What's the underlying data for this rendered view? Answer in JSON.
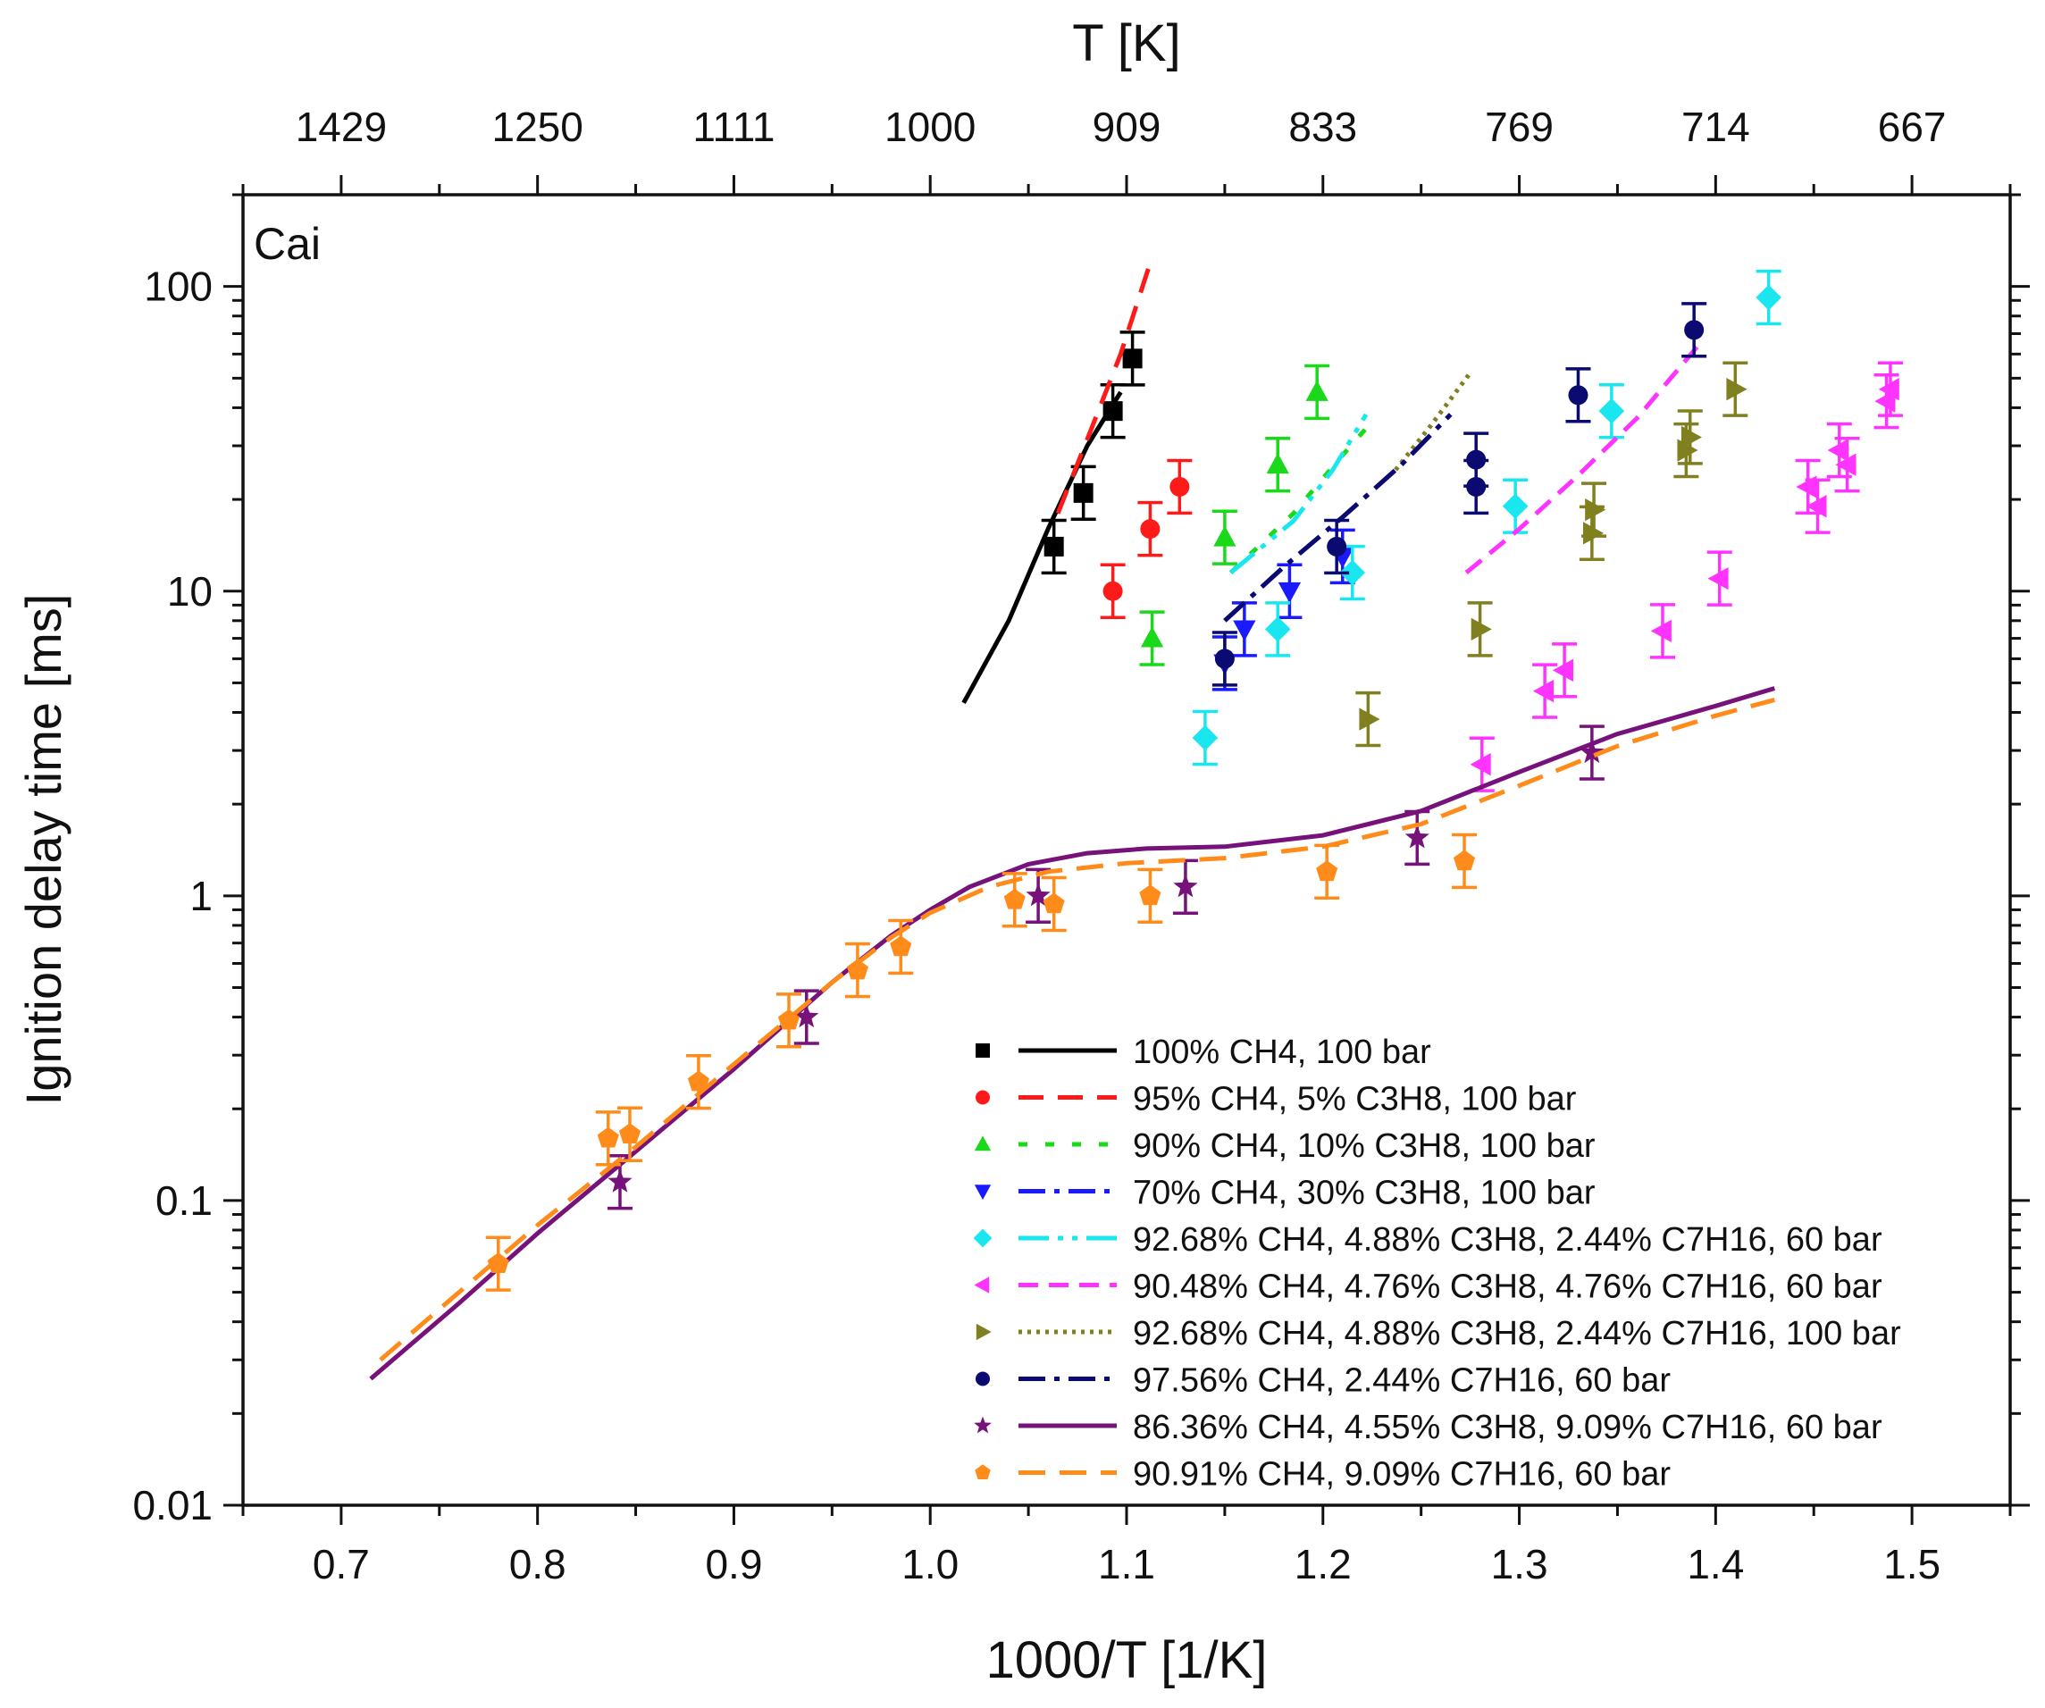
{
  "chart_data": {
    "type": "scatter",
    "title": "",
    "corner_label": "Cai",
    "xlabel": "1000/T [1/K]",
    "ylabel": "Ignition delay time [ms]",
    "top_xlabel": "T [K]",
    "xlim": [
      0.65,
      1.55
    ],
    "ylim": [
      0.01,
      200
    ],
    "yscale": "log",
    "x_ticks": [
      0.7,
      0.8,
      0.9,
      1.0,
      1.1,
      1.2,
      1.3,
      1.4,
      1.5
    ],
    "x_tick_labels": [
      "0.7",
      "0.8",
      "0.9",
      "1.0",
      "1.1",
      "1.2",
      "1.3",
      "1.4",
      "1.5"
    ],
    "y_ticks": [
      0.01,
      0.1,
      1,
      10,
      100
    ],
    "y_tick_labels": [
      "0.01",
      "0.1",
      "1",
      "10",
      "100"
    ],
    "top_ticks": [
      0.7,
      0.8,
      0.9,
      1.0,
      1.1,
      1.2,
      1.3,
      1.4,
      1.5
    ],
    "top_tick_labels": [
      "1429",
      "1250",
      "1111",
      "1000",
      "909",
      "833",
      "769",
      "714",
      "667"
    ],
    "legend_position": "bottom-right",
    "series": [
      {
        "name": "100% CH4, 100 bar",
        "color": "#000000",
        "marker": "square",
        "dash": "",
        "points": [
          [
            1.063,
            14
          ],
          [
            1.078,
            21
          ],
          [
            1.093,
            39
          ],
          [
            1.103,
            58
          ]
        ],
        "model": [
          [
            1.017,
            4.3
          ],
          [
            1.04,
            8
          ],
          [
            1.06,
            16
          ],
          [
            1.08,
            30
          ],
          [
            1.097,
            45
          ]
        ]
      },
      {
        "name": "95% CH4, 5% C3H8, 100 bar",
        "color": "#ff1a1a",
        "marker": "circle",
        "dash": "28,16",
        "points": [
          [
            1.093,
            10
          ],
          [
            1.112,
            16
          ],
          [
            1.127,
            22
          ]
        ],
        "model": [
          [
            1.065,
            18
          ],
          [
            1.082,
            34
          ],
          [
            1.097,
            60
          ],
          [
            1.113,
            125
          ]
        ]
      },
      {
        "name": "90% CH4, 10% C3H8, 100 bar",
        "color": "#1ad81a",
        "marker": "triangle-up",
        "dash": "10,20",
        "points": [
          [
            1.113,
            7
          ],
          [
            1.15,
            15
          ],
          [
            1.177,
            26
          ],
          [
            1.197,
            45
          ]
        ],
        "model": [
          [
            1.153,
            11.5
          ],
          [
            1.185,
            18
          ],
          [
            1.208,
            27
          ],
          [
            1.225,
            36
          ]
        ]
      },
      {
        "name": "70% CH4, 30% C3H8, 100 bar",
        "color": "#1a1aff",
        "marker": "triangle-down",
        "dash": "30,10,6,10",
        "points": [
          [
            1.15,
            5.8
          ],
          [
            1.16,
            7.5
          ],
          [
            1.183,
            10
          ],
          [
            1.21,
            13
          ]
        ],
        "model": [
          [
            1.15,
            8
          ],
          [
            1.18,
            12
          ],
          [
            1.21,
            17.5
          ],
          [
            1.24,
            26
          ],
          [
            1.265,
            38
          ]
        ]
      },
      {
        "name": "92.68% CH4, 4.88% C3H8, 2.44% C7H16, 60 bar",
        "color": "#1ae6f0",
        "marker": "diamond",
        "dash": "34,10,6,10,6,10",
        "points": [
          [
            1.14,
            3.3
          ],
          [
            1.177,
            7.5
          ],
          [
            1.215,
            11.5
          ],
          [
            1.298,
            19
          ],
          [
            1.347,
            39
          ],
          [
            1.427,
            92
          ]
        ],
        "model": [
          [
            1.153,
            11.5
          ],
          [
            1.185,
            17
          ],
          [
            1.205,
            25
          ],
          [
            1.222,
            38
          ]
        ]
      },
      {
        "name": "90.48% CH4, 4.76% C3H8, 4.76% C7H16, 60 bar",
        "color": "#ff33ff",
        "marker": "triangle-left",
        "dash": "22,12",
        "points": [
          [
            1.281,
            2.7
          ],
          [
            1.313,
            4.7
          ],
          [
            1.323,
            5.5
          ],
          [
            1.373,
            7.4
          ],
          [
            1.402,
            11
          ],
          [
            1.452,
            19
          ],
          [
            1.447,
            22
          ],
          [
            1.467,
            26
          ],
          [
            1.463,
            29
          ],
          [
            1.487,
            42
          ],
          [
            1.489,
            46
          ]
        ],
        "model": [
          [
            1.273,
            11.5
          ],
          [
            1.3,
            16
          ],
          [
            1.33,
            24
          ],
          [
            1.36,
            37
          ],
          [
            1.392,
            65
          ]
        ]
      },
      {
        "name": "92.68% CH4, 4.88% C3H8, 2.44% C7H16, 100 bar",
        "color": "#808020",
        "marker": "triangle-right",
        "dash": "4,6",
        "points": [
          [
            1.223,
            3.8
          ],
          [
            1.28,
            7.5
          ],
          [
            1.337,
            15.5
          ],
          [
            1.338,
            18.5
          ],
          [
            1.385,
            29
          ],
          [
            1.387,
            32
          ],
          [
            1.41,
            46
          ]
        ],
        "model": [
          [
            1.237,
            25
          ],
          [
            1.255,
            35
          ],
          [
            1.275,
            52
          ]
        ]
      },
      {
        "name": "97.56% CH4, 2.44% C7H16, 60 bar",
        "color": "#0a0a70",
        "marker": "circle",
        "dash": "30,10,6,10",
        "points": [
          [
            1.15,
            6
          ],
          [
            1.207,
            14
          ],
          [
            1.278,
            22
          ],
          [
            1.278,
            27
          ],
          [
            1.33,
            44
          ],
          [
            1.389,
            72
          ]
        ],
        "model": [
          [
            1.15,
            8
          ],
          [
            1.18,
            12
          ],
          [
            1.21,
            17.5
          ],
          [
            1.24,
            26
          ],
          [
            1.265,
            38
          ]
        ]
      },
      {
        "name": "86.36% CH4, 4.55% C3H8, 9.09% C7H16, 60 bar",
        "color": "#77127a",
        "marker": "star",
        "dash": "",
        "points": [
          [
            0.842,
            0.115
          ],
          [
            0.937,
            0.4
          ],
          [
            1.055,
            1.0
          ],
          [
            1.13,
            1.07
          ],
          [
            1.248,
            1.55
          ],
          [
            1.337,
            2.95
          ]
        ],
        "model": [
          [
            0.715,
            0.026
          ],
          [
            0.76,
            0.046
          ],
          [
            0.8,
            0.078
          ],
          [
            0.85,
            0.145
          ],
          [
            0.9,
            0.27
          ],
          [
            0.95,
            0.52
          ],
          [
            0.98,
            0.74
          ],
          [
            1.0,
            0.9
          ],
          [
            1.02,
            1.07
          ],
          [
            1.05,
            1.27
          ],
          [
            1.08,
            1.38
          ],
          [
            1.11,
            1.43
          ],
          [
            1.15,
            1.45
          ],
          [
            1.2,
            1.58
          ],
          [
            1.25,
            1.9
          ],
          [
            1.3,
            2.55
          ],
          [
            1.35,
            3.4
          ],
          [
            1.4,
            4.2
          ],
          [
            1.43,
            4.8
          ]
        ]
      },
      {
        "name": "90.91% CH4, 9.09% C7H16, 60 bar",
        "color": "#ff8c1a",
        "marker": "pentagon",
        "dash": "30,16",
        "points": [
          [
            0.78,
            0.062
          ],
          [
            0.836,
            0.16
          ],
          [
            0.847,
            0.165
          ],
          [
            0.882,
            0.245
          ],
          [
            0.928,
            0.39
          ],
          [
            0.963,
            0.57
          ],
          [
            0.985,
            0.68
          ],
          [
            1.043,
            0.97
          ],
          [
            1.063,
            0.94
          ],
          [
            1.112,
            1.0
          ],
          [
            1.202,
            1.2
          ],
          [
            1.272,
            1.3
          ]
        ],
        "model": [
          [
            0.72,
            0.03
          ],
          [
            0.76,
            0.05
          ],
          [
            0.8,
            0.083
          ],
          [
            0.85,
            0.15
          ],
          [
            0.9,
            0.28
          ],
          [
            0.95,
            0.52
          ],
          [
            0.98,
            0.73
          ],
          [
            1.0,
            0.88
          ],
          [
            1.03,
            1.07
          ],
          [
            1.06,
            1.2
          ],
          [
            1.1,
            1.28
          ],
          [
            1.15,
            1.33
          ],
          [
            1.2,
            1.45
          ],
          [
            1.25,
            1.72
          ],
          [
            1.3,
            2.3
          ],
          [
            1.35,
            3.1
          ],
          [
            1.4,
            3.9
          ],
          [
            1.43,
            4.4
          ]
        ]
      }
    ]
  }
}
